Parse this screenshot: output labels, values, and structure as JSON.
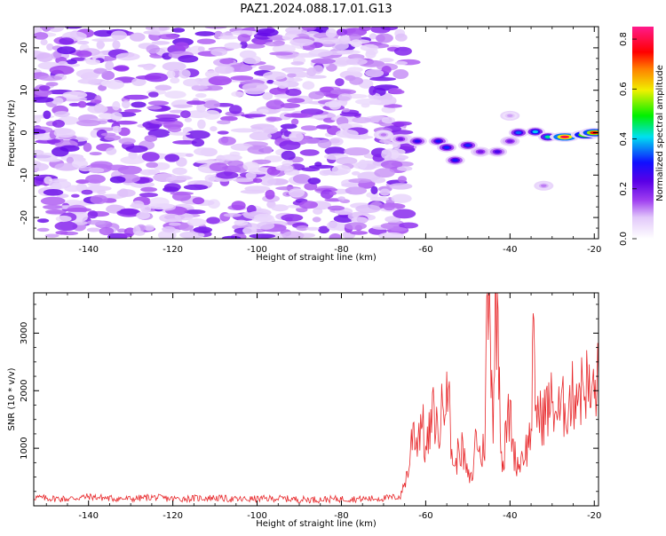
{
  "title": "PAZ1.2024.088.17.01.G13",
  "chart_data": [
    {
      "type": "heatmap",
      "xlabel": "Height of straight line (km)",
      "ylabel": "Frequency (Hz)",
      "xlim": [
        -153,
        -19
      ],
      "ylim": [
        -25,
        25
      ],
      "xticks": [
        -140,
        -120,
        -100,
        -80,
        -60,
        -40,
        -20
      ],
      "yticks": [
        -20,
        -10,
        0,
        10,
        20
      ],
      "colorbar": {
        "label": "Normalized spectral amplitude",
        "range": [
          0,
          0.85
        ],
        "ticks": [
          0.0,
          0.2,
          0.4,
          0.6,
          0.8
        ],
        "colors": [
          "#ffffff",
          "#e2c8fa",
          "#a040f0",
          "#5a00e6",
          "#1010ff",
          "#00e0f0",
          "#00f000",
          "#f0f000",
          "#ff8000",
          "#ff0000",
          "#ff1a8c"
        ]
      },
      "noise_region": {
        "x": [
          -153,
          -64
        ],
        "y": [
          -25,
          25
        ],
        "level": 0.12
      },
      "signal_blobs": [
        {
          "x": -70,
          "y": -0.5,
          "value": 0.12
        },
        {
          "x": -66,
          "y": -1.5,
          "value": 0.2
        },
        {
          "x": -62,
          "y": -2.0,
          "value": 0.28
        },
        {
          "x": -57,
          "y": -2.0,
          "value": 0.3
        },
        {
          "x": -55,
          "y": -3.5,
          "value": 0.32
        },
        {
          "x": -53,
          "y": -6.5,
          "value": 0.3
        },
        {
          "x": -50,
          "y": -3.0,
          "value": 0.32
        },
        {
          "x": -47,
          "y": -4.5,
          "value": 0.2
        },
        {
          "x": -43,
          "y": -4.5,
          "value": 0.25
        },
        {
          "x": -40,
          "y": -2.0,
          "value": 0.2
        },
        {
          "x": -38,
          "y": 0.0,
          "value": 0.35
        },
        {
          "x": -34,
          "y": 0.2,
          "value": 0.4
        },
        {
          "x": -31,
          "y": -1.0,
          "value": 0.45
        },
        {
          "x": -27,
          "y": -1.0,
          "value": 0.8
        },
        {
          "x": -22,
          "y": -0.5,
          "value": 0.7
        },
        {
          "x": -20,
          "y": 0.0,
          "value": 0.75
        },
        {
          "x": -32,
          "y": -12.5,
          "value": 0.12
        },
        {
          "x": -40,
          "y": 4.0,
          "value": 0.1
        }
      ]
    },
    {
      "type": "line",
      "xlabel": "Height of straight line (km)",
      "ylabel": "SNR (10 * v/v)",
      "xlim": [
        -153,
        -19
      ],
      "ylim": [
        0,
        3700
      ],
      "xticks": [
        -140,
        -120,
        -100,
        -80,
        -60,
        -40,
        -20
      ],
      "yticks": [
        1000,
        2000,
        3000
      ],
      "color": "#e8282b",
      "series": [
        {
          "x": [
            -153,
            -150,
            -145,
            -140,
            -135,
            -130,
            -125,
            -120,
            -115,
            -110,
            -105,
            -100,
            -95,
            -90,
            -85,
            -80,
            -75,
            -70,
            -66,
            -64,
            -63,
            -62,
            -61,
            -60,
            -59,
            -58,
            -57,
            -56,
            -55,
            -54,
            -53,
            -52,
            -51,
            -50,
            -49,
            -48,
            -47,
            -46,
            -45.5,
            -45,
            -44.5,
            -44,
            -43.5,
            -43,
            -42.5,
            -42,
            -41.5,
            -41,
            -40,
            -39,
            -38,
            -37,
            -36,
            -35,
            -34.5,
            -34,
            -33,
            -32,
            -31,
            -30,
            -29,
            -28,
            -27,
            -26,
            -25,
            -24,
            -23,
            -22,
            -21,
            -20,
            -19
          ],
          "y": [
            150,
            130,
            120,
            160,
            130,
            120,
            150,
            120,
            130,
            140,
            110,
            120,
            130,
            110,
            110,
            120,
            120,
            130,
            160,
            650,
            1400,
            1100,
            1600,
            900,
            1300,
            1650,
            1200,
            1700,
            2600,
            1050,
            600,
            1100,
            850,
            500,
            450,
            1300,
            800,
            1100,
            3200,
            3700,
            2800,
            1500,
            3400,
            3600,
            2300,
            900,
            700,
            1300,
            1600,
            900,
            700,
            900,
            1000,
            1300,
            2700,
            1900,
            1500,
            1600,
            1700,
            1800,
            1650,
            1600,
            1750,
            1800,
            1900,
            2100,
            2000,
            2200,
            1850,
            2000,
            2200
          ]
        }
      ]
    }
  ]
}
